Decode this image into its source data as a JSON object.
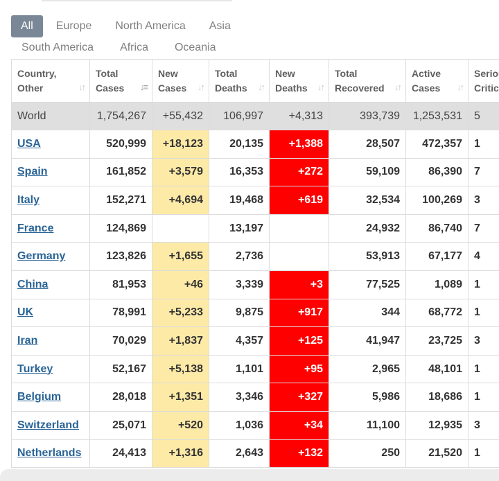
{
  "tabs": {
    "row1": [
      "All",
      "Europe",
      "North America",
      "Asia"
    ],
    "row2": [
      "South America",
      "Africa",
      "Oceania"
    ],
    "active": "All"
  },
  "columns": [
    {
      "line1": "Country,",
      "line2": "Other"
    },
    {
      "line1": "Total",
      "line2": "Cases"
    },
    {
      "line1": "New",
      "line2": "Cases"
    },
    {
      "line1": "Total",
      "line2": "Deaths"
    },
    {
      "line1": "New",
      "line2": "Deaths"
    },
    {
      "line1": "Total",
      "line2": "Recovered"
    },
    {
      "line1": "Active",
      "line2": "Cases"
    },
    {
      "line1": "Seriou",
      "line2": "Critic"
    }
  ],
  "world": {
    "country": "World",
    "total_cases": "1,754,267",
    "new_cases": "+55,432",
    "total_deaths": "106,997",
    "new_deaths": "+4,313",
    "total_recovered": "393,739",
    "active_cases": "1,253,531",
    "serious": "5"
  },
  "rows": [
    {
      "country": "USA",
      "total_cases": "520,999",
      "new_cases": "+18,123",
      "total_deaths": "20,135",
      "new_deaths": "+1,388",
      "total_recovered": "28,507",
      "active_cases": "472,357",
      "serious": "1"
    },
    {
      "country": "Spain",
      "total_cases": "161,852",
      "new_cases": "+3,579",
      "total_deaths": "16,353",
      "new_deaths": "+272",
      "total_recovered": "59,109",
      "active_cases": "86,390",
      "serious": "7"
    },
    {
      "country": "Italy",
      "total_cases": "152,271",
      "new_cases": "+4,694",
      "total_deaths": "19,468",
      "new_deaths": "+619",
      "total_recovered": "32,534",
      "active_cases": "100,269",
      "serious": "3"
    },
    {
      "country": "France",
      "total_cases": "124,869",
      "new_cases": "",
      "total_deaths": "13,197",
      "new_deaths": "",
      "total_recovered": "24,932",
      "active_cases": "86,740",
      "serious": "7"
    },
    {
      "country": "Germany",
      "total_cases": "123,826",
      "new_cases": "+1,655",
      "total_deaths": "2,736",
      "new_deaths": "",
      "total_recovered": "53,913",
      "active_cases": "67,177",
      "serious": "4"
    },
    {
      "country": "China",
      "total_cases": "81,953",
      "new_cases": "+46",
      "total_deaths": "3,339",
      "new_deaths": "+3",
      "total_recovered": "77,525",
      "active_cases": "1,089",
      "serious": "1"
    },
    {
      "country": "UK",
      "total_cases": "78,991",
      "new_cases": "+5,233",
      "total_deaths": "9,875",
      "new_deaths": "+917",
      "total_recovered": "344",
      "active_cases": "68,772",
      "serious": "1"
    },
    {
      "country": "Iran",
      "total_cases": "70,029",
      "new_cases": "+1,837",
      "total_deaths": "4,357",
      "new_deaths": "+125",
      "total_recovered": "41,947",
      "active_cases": "23,725",
      "serious": "3"
    },
    {
      "country": "Turkey",
      "total_cases": "52,167",
      "new_cases": "+5,138",
      "total_deaths": "1,101",
      "new_deaths": "+95",
      "total_recovered": "2,965",
      "active_cases": "48,101",
      "serious": "1"
    },
    {
      "country": "Belgium",
      "total_cases": "28,018",
      "new_cases": "+1,351",
      "total_deaths": "3,346",
      "new_deaths": "+327",
      "total_recovered": "5,986",
      "active_cases": "18,686",
      "serious": "1"
    },
    {
      "country": "Switzerland",
      "total_cases": "25,071",
      "new_cases": "+520",
      "total_deaths": "1,036",
      "new_deaths": "+34",
      "total_recovered": "11,100",
      "active_cases": "12,935",
      "serious": "3"
    },
    {
      "country": "Netherlands",
      "total_cases": "24,413",
      "new_cases": "+1,316",
      "total_deaths": "2,643",
      "new_deaths": "+132",
      "total_recovered": "250",
      "active_cases": "21,520",
      "serious": "1"
    }
  ],
  "colors": {
    "new_cases_bg": "#fdeaa7",
    "new_deaths_bg": "#ff0000",
    "world_row_bg": "#dfdfdf",
    "active_tab_bg": "#7a8796",
    "link": "#2a6496"
  },
  "icons": {
    "sort": "sort-arrows-icon",
    "sort_active": "sort-desc-icon"
  }
}
